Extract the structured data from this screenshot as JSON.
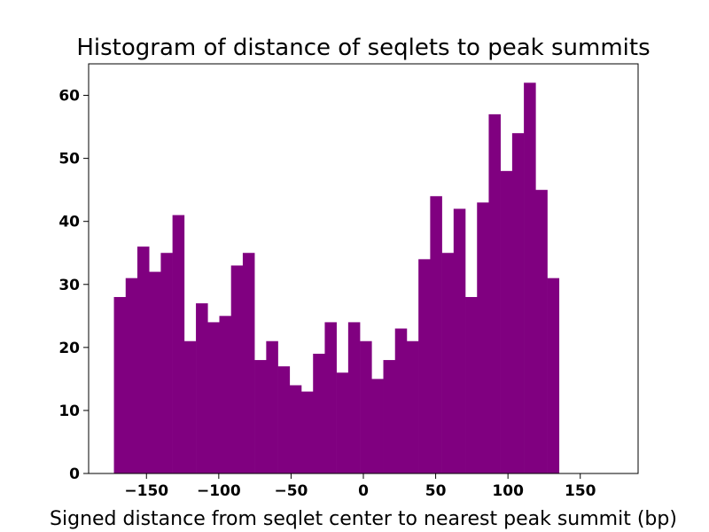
{
  "chart_data": {
    "type": "bar",
    "title": "Histogram of distance of seqlets to peak summits",
    "xlabel": "Signed distance from seqlet center to nearest peak summit (bp)",
    "ylabel": "",
    "bar_color": "#800080",
    "bin_start": -172.5,
    "bin_width": 8.1,
    "values": [
      28,
      31,
      36,
      32,
      35,
      41,
      21,
      27,
      24,
      25,
      33,
      35,
      18,
      21,
      17,
      14,
      13,
      19,
      24,
      16,
      24,
      21,
      15,
      18,
      23,
      21,
      34,
      44,
      35,
      42,
      28,
      43,
      57,
      48,
      54,
      62,
      45,
      31
    ],
    "xlim": [
      -190,
      190
    ],
    "ylim": [
      0,
      65
    ],
    "x_ticks": [
      {
        "value": -150,
        "label": "−150"
      },
      {
        "value": -100,
        "label": "−100"
      },
      {
        "value": -50,
        "label": "−50"
      },
      {
        "value": 0,
        "label": "0"
      },
      {
        "value": 50,
        "label": "50"
      },
      {
        "value": 100,
        "label": "100"
      },
      {
        "value": 150,
        "label": "150"
      }
    ],
    "y_ticks": [
      {
        "value": 0,
        "label": "0"
      },
      {
        "value": 10,
        "label": "10"
      },
      {
        "value": 20,
        "label": "20"
      },
      {
        "value": 30,
        "label": "30"
      },
      {
        "value": 40,
        "label": "40"
      },
      {
        "value": 50,
        "label": "50"
      },
      {
        "value": 60,
        "label": "60"
      }
    ],
    "grid": false,
    "legend": "none"
  }
}
